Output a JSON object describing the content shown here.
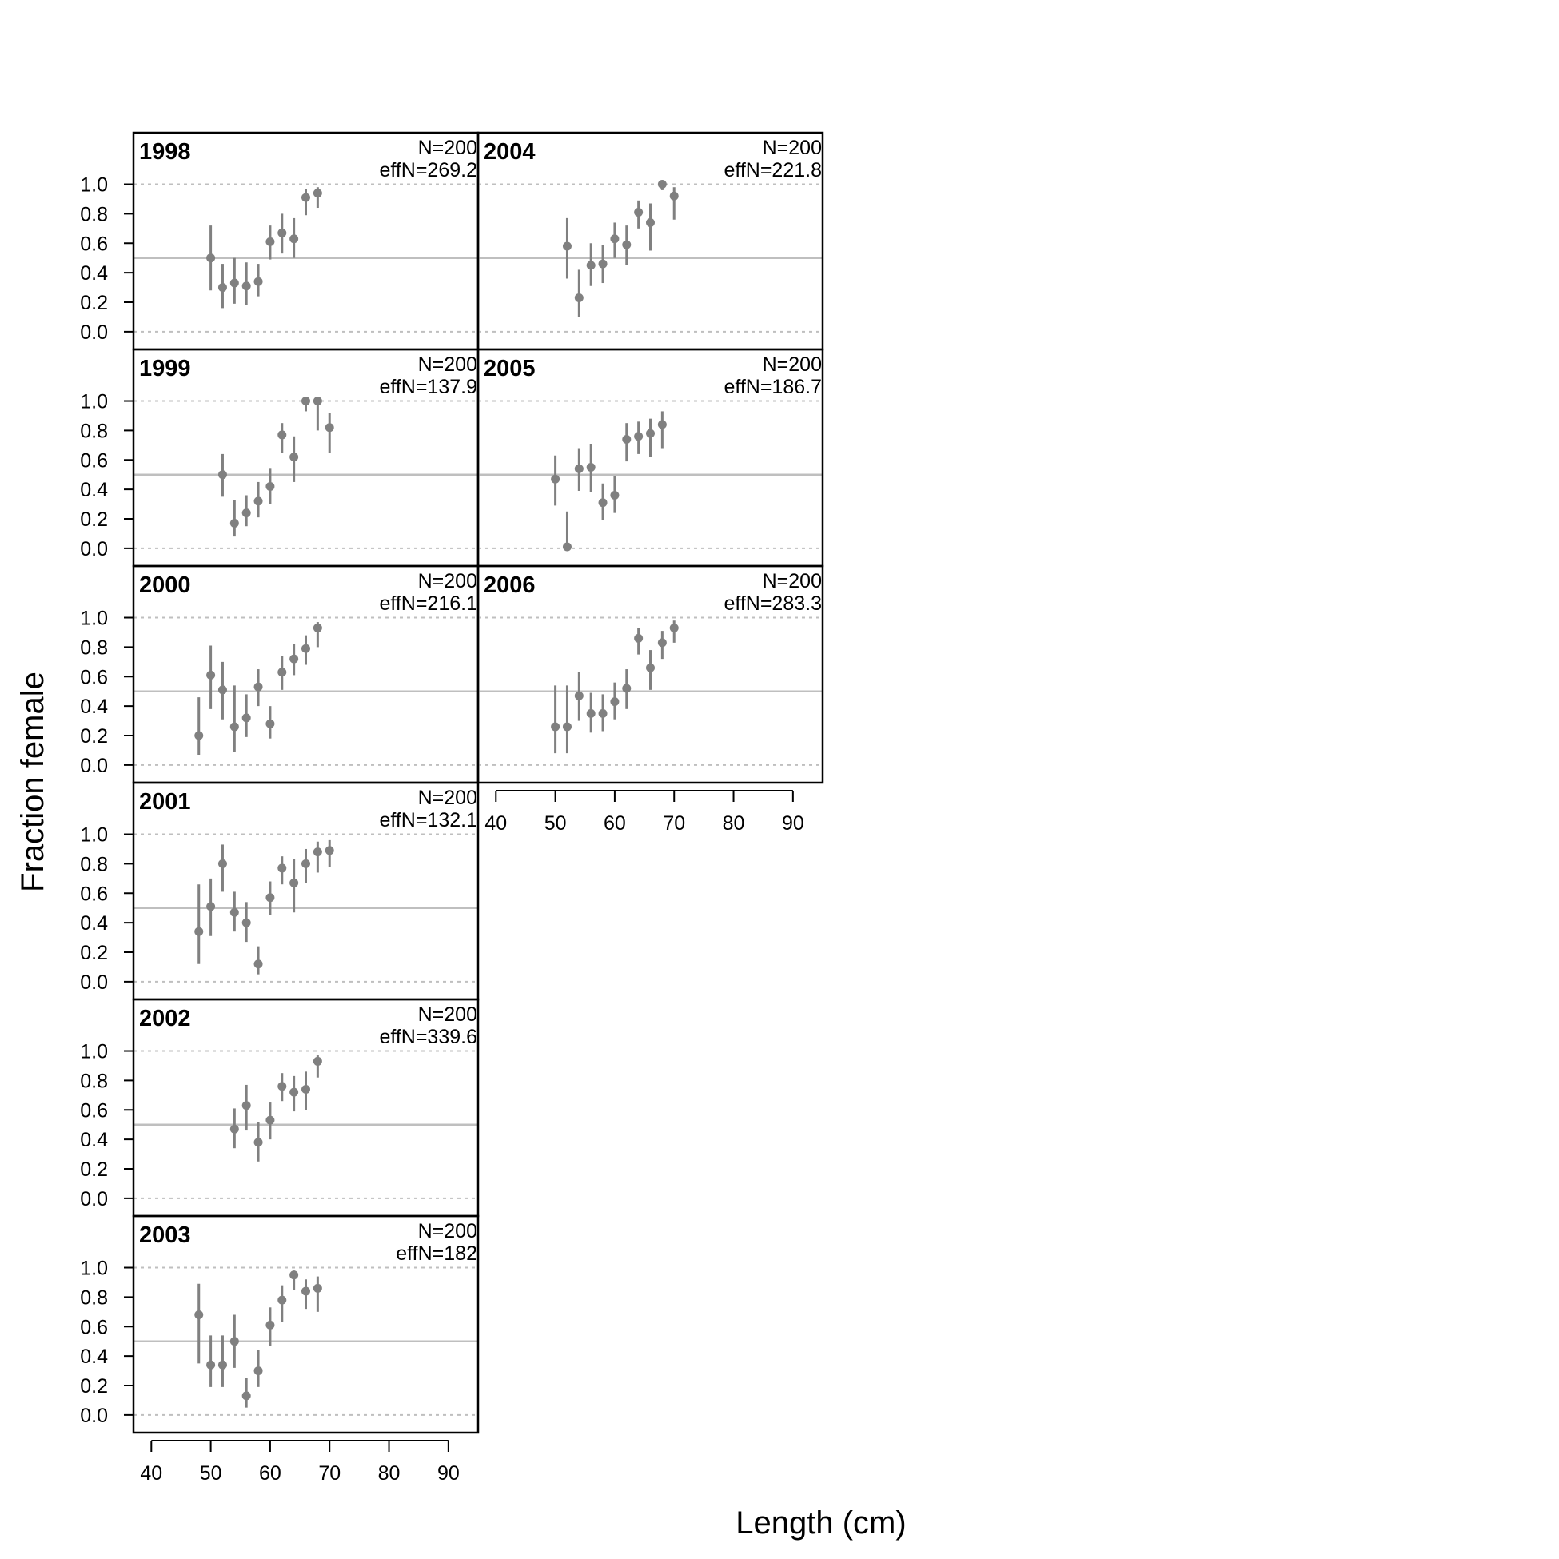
{
  "figure": {
    "xlabel": "Length (cm)",
    "ylabel": "Fraction female"
  },
  "colors": {
    "point": "#808080",
    "errorbar": "#808080",
    "refline_solid": "#bfbfbf",
    "refline_dashed": "#bfbfbf",
    "frame": "#000000",
    "text": "#000000"
  },
  "chart_data": {
    "type": "scatter",
    "layout": "panel-grid",
    "xlim": [
      37,
      95
    ],
    "ylim": [
      -0.12,
      1.35
    ],
    "x_ticks": [
      40,
      50,
      60,
      70,
      80,
      90
    ],
    "y_ticks": [
      0.0,
      0.2,
      0.4,
      0.6,
      0.8,
      1.0
    ],
    "y_tick_labels": [
      "0.0",
      "0.2",
      "0.4",
      "0.6",
      "0.8",
      "1.0"
    ],
    "ref_lines": {
      "solid": 0.5,
      "dashed": [
        0.0,
        1.0
      ]
    },
    "panels": [
      {
        "year": "1998",
        "n_label": "N=200",
        "effn_label": "effN=269.2",
        "points": [
          [
            50,
            0.5,
            0.28,
            0.72
          ],
          [
            52,
            0.3,
            0.16,
            0.46
          ],
          [
            54,
            0.33,
            0.19,
            0.5
          ],
          [
            56,
            0.31,
            0.18,
            0.47
          ],
          [
            58,
            0.34,
            0.24,
            0.46
          ],
          [
            60,
            0.61,
            0.49,
            0.72
          ],
          [
            62,
            0.67,
            0.53,
            0.8
          ],
          [
            64,
            0.63,
            0.5,
            0.77
          ],
          [
            66,
            0.91,
            0.79,
            0.97
          ],
          [
            68,
            0.94,
            0.84,
            0.98
          ]
        ]
      },
      {
        "year": "1999",
        "n_label": "N=200",
        "effn_label": "effN=137.9",
        "points": [
          [
            52,
            0.5,
            0.35,
            0.64
          ],
          [
            54,
            0.17,
            0.08,
            0.33
          ],
          [
            56,
            0.24,
            0.15,
            0.36
          ],
          [
            58,
            0.32,
            0.21,
            0.45
          ],
          [
            60,
            0.42,
            0.3,
            0.54
          ],
          [
            62,
            0.77,
            0.65,
            0.85
          ],
          [
            64,
            0.62,
            0.45,
            0.76
          ],
          [
            66,
            1.0,
            0.93,
            1.0
          ],
          [
            68,
            1.0,
            0.8,
            1.0
          ],
          [
            70,
            0.82,
            0.65,
            0.92
          ]
        ]
      },
      {
        "year": "2000",
        "n_label": "N=200",
        "effn_label": "effN=216.1",
        "points": [
          [
            48,
            0.2,
            0.07,
            0.46
          ],
          [
            50,
            0.61,
            0.38,
            0.81
          ],
          [
            52,
            0.51,
            0.31,
            0.7
          ],
          [
            54,
            0.26,
            0.09,
            0.54
          ],
          [
            56,
            0.32,
            0.19,
            0.48
          ],
          [
            58,
            0.53,
            0.4,
            0.65
          ],
          [
            60,
            0.28,
            0.18,
            0.4
          ],
          [
            62,
            0.63,
            0.51,
            0.74
          ],
          [
            64,
            0.72,
            0.61,
            0.82
          ],
          [
            66,
            0.79,
            0.68,
            0.88
          ],
          [
            68,
            0.93,
            0.8,
            0.97
          ]
        ]
      },
      {
        "year": "2001",
        "n_label": "N=200",
        "effn_label": "effN=132.1",
        "points": [
          [
            48,
            0.34,
            0.12,
            0.66
          ],
          [
            50,
            0.51,
            0.31,
            0.7
          ],
          [
            52,
            0.8,
            0.61,
            0.93
          ],
          [
            54,
            0.47,
            0.34,
            0.61
          ],
          [
            56,
            0.4,
            0.27,
            0.54
          ],
          [
            58,
            0.12,
            0.05,
            0.24
          ],
          [
            60,
            0.57,
            0.45,
            0.68
          ],
          [
            62,
            0.77,
            0.66,
            0.85
          ],
          [
            64,
            0.67,
            0.47,
            0.83
          ],
          [
            66,
            0.8,
            0.67,
            0.9
          ],
          [
            68,
            0.88,
            0.74,
            0.95
          ],
          [
            70,
            0.89,
            0.78,
            0.96
          ]
        ]
      },
      {
        "year": "2002",
        "n_label": "N=200",
        "effn_label": "effN=339.6",
        "points": [
          [
            54,
            0.47,
            0.34,
            0.61
          ],
          [
            56,
            0.63,
            0.46,
            0.77
          ],
          [
            58,
            0.38,
            0.25,
            0.52
          ],
          [
            60,
            0.53,
            0.4,
            0.65
          ],
          [
            62,
            0.76,
            0.66,
            0.85
          ],
          [
            64,
            0.72,
            0.59,
            0.83
          ],
          [
            66,
            0.74,
            0.6,
            0.86
          ],
          [
            68,
            0.93,
            0.82,
            0.97
          ]
        ]
      },
      {
        "year": "2003",
        "n_label": "N=200",
        "effn_label": "effN=182",
        "points": [
          [
            48,
            0.68,
            0.35,
            0.89
          ],
          [
            50,
            0.34,
            0.19,
            0.54
          ],
          [
            52,
            0.34,
            0.19,
            0.54
          ],
          [
            54,
            0.5,
            0.32,
            0.68
          ],
          [
            56,
            0.13,
            0.05,
            0.25
          ],
          [
            58,
            0.3,
            0.19,
            0.44
          ],
          [
            60,
            0.61,
            0.47,
            0.73
          ],
          [
            62,
            0.78,
            0.63,
            0.88
          ],
          [
            64,
            0.95,
            0.85,
            0.98
          ],
          [
            66,
            0.84,
            0.72,
            0.92
          ],
          [
            68,
            0.86,
            0.7,
            0.94
          ]
        ]
      },
      {
        "year": "2004",
        "n_label": "N=200",
        "effn_label": "effN=221.8",
        "points": [
          [
            52,
            0.58,
            0.36,
            0.77
          ],
          [
            54,
            0.23,
            0.1,
            0.42
          ],
          [
            56,
            0.45,
            0.31,
            0.6
          ],
          [
            58,
            0.46,
            0.33,
            0.59
          ],
          [
            60,
            0.63,
            0.5,
            0.74
          ],
          [
            62,
            0.59,
            0.45,
            0.72
          ],
          [
            64,
            0.81,
            0.7,
            0.89
          ],
          [
            66,
            0.74,
            0.55,
            0.87
          ],
          [
            68,
            1.0,
            0.96,
            1.0
          ],
          [
            70,
            0.92,
            0.76,
            0.98
          ]
        ]
      },
      {
        "year": "2005",
        "n_label": "N=200",
        "effn_label": "effN=186.7",
        "points": [
          [
            50,
            0.47,
            0.29,
            0.63
          ],
          [
            52,
            0.01,
            0.0,
            0.25
          ],
          [
            54,
            0.54,
            0.39,
            0.68
          ],
          [
            56,
            0.55,
            0.38,
            0.71
          ],
          [
            58,
            0.31,
            0.19,
            0.44
          ],
          [
            60,
            0.36,
            0.24,
            0.49
          ],
          [
            62,
            0.74,
            0.59,
            0.85
          ],
          [
            64,
            0.76,
            0.64,
            0.86
          ],
          [
            66,
            0.78,
            0.62,
            0.88
          ],
          [
            68,
            0.84,
            0.68,
            0.93
          ]
        ]
      },
      {
        "year": "2006",
        "n_label": "N=200",
        "effn_label": "effN=283.3",
        "points": [
          [
            50,
            0.26,
            0.08,
            0.54
          ],
          [
            52,
            0.26,
            0.08,
            0.54
          ],
          [
            54,
            0.47,
            0.3,
            0.63
          ],
          [
            56,
            0.35,
            0.22,
            0.49
          ],
          [
            58,
            0.35,
            0.23,
            0.48
          ],
          [
            60,
            0.43,
            0.31,
            0.56
          ],
          [
            62,
            0.52,
            0.38,
            0.65
          ],
          [
            64,
            0.86,
            0.75,
            0.93
          ],
          [
            66,
            0.66,
            0.51,
            0.78
          ],
          [
            68,
            0.83,
            0.72,
            0.91
          ],
          [
            70,
            0.93,
            0.83,
            0.98
          ]
        ]
      }
    ]
  }
}
